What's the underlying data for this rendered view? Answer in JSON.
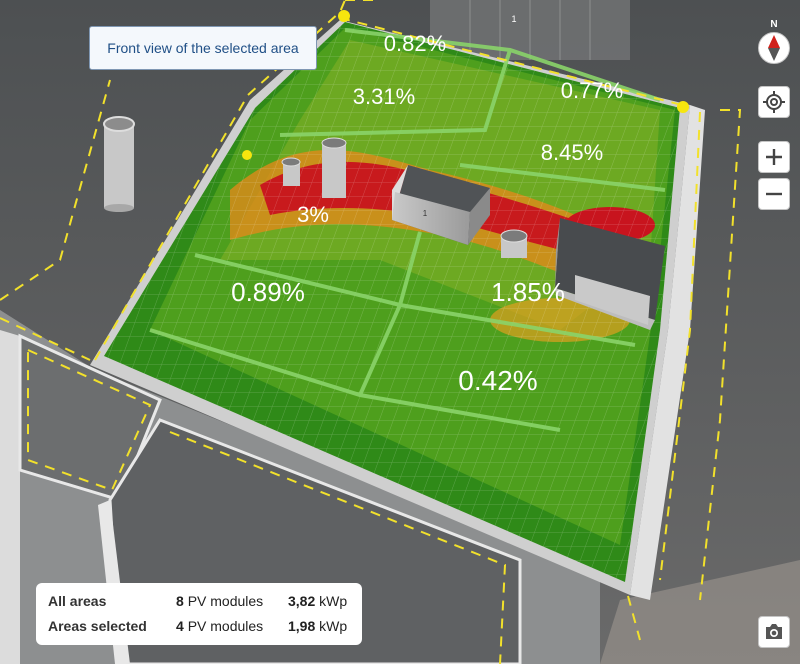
{
  "tooltip": "Front view of the selected area",
  "compass": {
    "north_label": "N",
    "icon": "compass-needle-icon"
  },
  "controls": {
    "locate_icon": "crosshair-icon",
    "zoom_in_icon": "plus-icon",
    "zoom_out_icon": "minus-icon",
    "screenshot_icon": "camera-icon"
  },
  "roof_areas": [
    {
      "id": "top-center",
      "loss": "0.82%"
    },
    {
      "id": "upper-left",
      "loss": "3.31%"
    },
    {
      "id": "upper-right",
      "loss": "0.77%"
    },
    {
      "id": "mid-right",
      "loss": "8.45%"
    },
    {
      "id": "mid-center",
      "loss": "3%"
    },
    {
      "id": "lower-left",
      "loss": "0.89%"
    },
    {
      "id": "lower-right",
      "loss": "1.85%"
    },
    {
      "id": "bottom-center",
      "loss": "0.42%"
    }
  ],
  "markers": {
    "box_label_1": "1",
    "top_label_1": "1"
  },
  "summary": {
    "rows": [
      {
        "label": "All areas",
        "modules_count": "8",
        "modules_unit": "PV modules",
        "power_value": "3,82",
        "power_unit": "kWp"
      },
      {
        "label": "Areas selected",
        "modules_count": "4",
        "modules_unit": "PV modules",
        "power_value": "1,98",
        "power_unit": "kWp"
      }
    ]
  },
  "colors": {
    "shade_low": "#1f7a12",
    "shade_mid": "#8bb52a",
    "shade_high": "#c8141e",
    "tooltip_text": "#1f4f86",
    "outline_dash": "#f2e12b"
  }
}
